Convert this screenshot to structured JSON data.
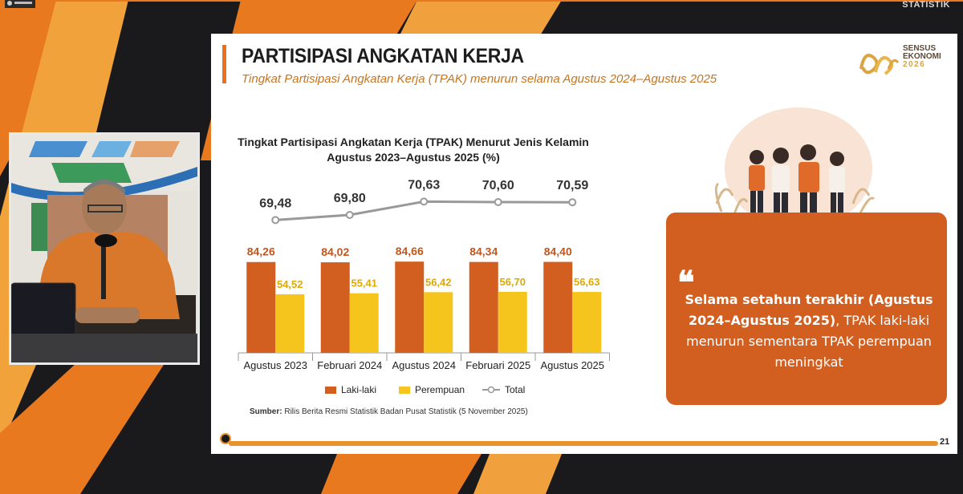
{
  "broadcast": {
    "brand": "STATISTIK"
  },
  "slide": {
    "title": "PARTISIPASI ANGKATAN KERJA",
    "subtitle": "Tingkat Partisipasi Angkatan Kerja (TPAK) menurun selama Agustus 2024–Agustus 2025",
    "logo": {
      "line1": "SENSUS",
      "line2": "EKONOMI",
      "year": "2026"
    },
    "chart_title_line1": "Tingkat Partisipasi Angkatan Kerja (TPAK) Menurut Jenis Kelamin",
    "chart_title_line2": "Agustus 2023–Agustus 2025 (%)",
    "source_label": "Sumber:",
    "source_text": "Rilis Berita Resmi Statistik Badan Pusat Statistik (5 November 2025)",
    "quote": {
      "mark": "❝",
      "bold": "Selama setahun terakhir (Agustus 2024–Agustus 2025)",
      "rest": ", TPAK laki-laki menurun sementara TPAK perempuan meningkat"
    },
    "page_number": "21"
  },
  "chart_data": {
    "type": "bar",
    "categories": [
      "Agustus 2023",
      "Februari 2024",
      "Agustus 2024",
      "Februari 2025",
      "Agustus 2025"
    ],
    "series": [
      {
        "name": "Laki-laki",
        "values": [
          84.26,
          84.02,
          84.66,
          84.34,
          84.4
        ],
        "labels": [
          "84,26",
          "84,02",
          "84,66",
          "84,34",
          "84,40"
        ],
        "color": "#d25f1f"
      },
      {
        "name": "Perempuan",
        "values": [
          54.52,
          55.41,
          56.42,
          56.7,
          56.63
        ],
        "labels": [
          "54,52",
          "55,41",
          "56,42",
          "56,70",
          "56,63"
        ],
        "color": "#f5c51d"
      },
      {
        "name": "Total",
        "type": "line",
        "values": [
          69.48,
          69.8,
          70.63,
          70.6,
          70.59
        ],
        "labels": [
          "69,48",
          "69,80",
          "70,63",
          "70,60",
          "70,59"
        ],
        "color": "#999999"
      }
    ],
    "title": "Tingkat Partisipasi Angkatan Kerja (TPAK) Menurut Jenis Kelamin Agustus 2023–Agustus 2025 (%)",
    "xlabel": "",
    "ylabel": "%"
  },
  "colors": {
    "accent": "#d25f1f",
    "yellow": "#f5c51d",
    "line": "#999999",
    "bar_orange": "#e9922d"
  }
}
